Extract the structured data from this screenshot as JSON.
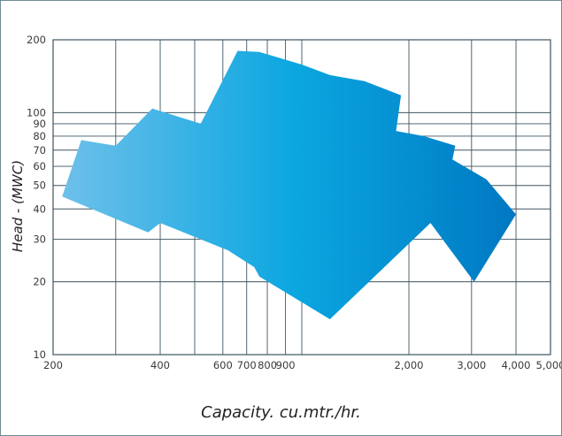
{
  "chart_data": {
    "type": "area",
    "xlabel": "Capacity. cu.mtr./hr.",
    "ylabel": "Head - (MWC)",
    "x_scale": "log",
    "y_scale": "log",
    "xlim": [
      200,
      5000
    ],
    "ylim": [
      10,
      200
    ],
    "x_ticks": [
      200,
      300,
      400,
      500,
      600,
      700,
      800,
      900,
      1000,
      2000,
      3000,
      4000,
      5000
    ],
    "x_tick_labels": [
      "200",
      "",
      "400",
      "",
      "600",
      "700",
      "800",
      "900",
      "",
      "2,000",
      "3,000",
      "4,000",
      "5,000"
    ],
    "y_ticks": [
      10,
      20,
      30,
      40,
      50,
      60,
      70,
      80,
      90,
      100,
      200
    ],
    "y_tick_labels": [
      "10",
      "20",
      "30",
      "40",
      "50",
      "60",
      "70",
      "80",
      "90",
      "100",
      "200"
    ],
    "grid": true,
    "fill_gradient": [
      "#6dc0ea",
      "#0aa6e0",
      "#0078c2"
    ],
    "envelope": [
      {
        "x": 212,
        "y": 45
      },
      {
        "x": 240,
        "y": 77
      },
      {
        "x": 300,
        "y": 73
      },
      {
        "x": 380,
        "y": 104
      },
      {
        "x": 520,
        "y": 90
      },
      {
        "x": 660,
        "y": 180
      },
      {
        "x": 760,
        "y": 178
      },
      {
        "x": 1000,
        "y": 158
      },
      {
        "x": 1200,
        "y": 143
      },
      {
        "x": 1500,
        "y": 135
      },
      {
        "x": 1900,
        "y": 118
      },
      {
        "x": 1840,
        "y": 84
      },
      {
        "x": 2200,
        "y": 80
      },
      {
        "x": 2700,
        "y": 73
      },
      {
        "x": 2650,
        "y": 64
      },
      {
        "x": 3300,
        "y": 53
      },
      {
        "x": 4000,
        "y": 38
      },
      {
        "x": 3050,
        "y": 20
      },
      {
        "x": 2300,
        "y": 35
      },
      {
        "x": 1200,
        "y": 14
      },
      {
        "x": 760,
        "y": 21
      },
      {
        "x": 735,
        "y": 23
      },
      {
        "x": 620,
        "y": 27
      },
      {
        "x": 400,
        "y": 35
      },
      {
        "x": 370,
        "y": 32
      },
      {
        "x": 305,
        "y": 36
      },
      {
        "x": 212,
        "y": 45
      }
    ]
  }
}
